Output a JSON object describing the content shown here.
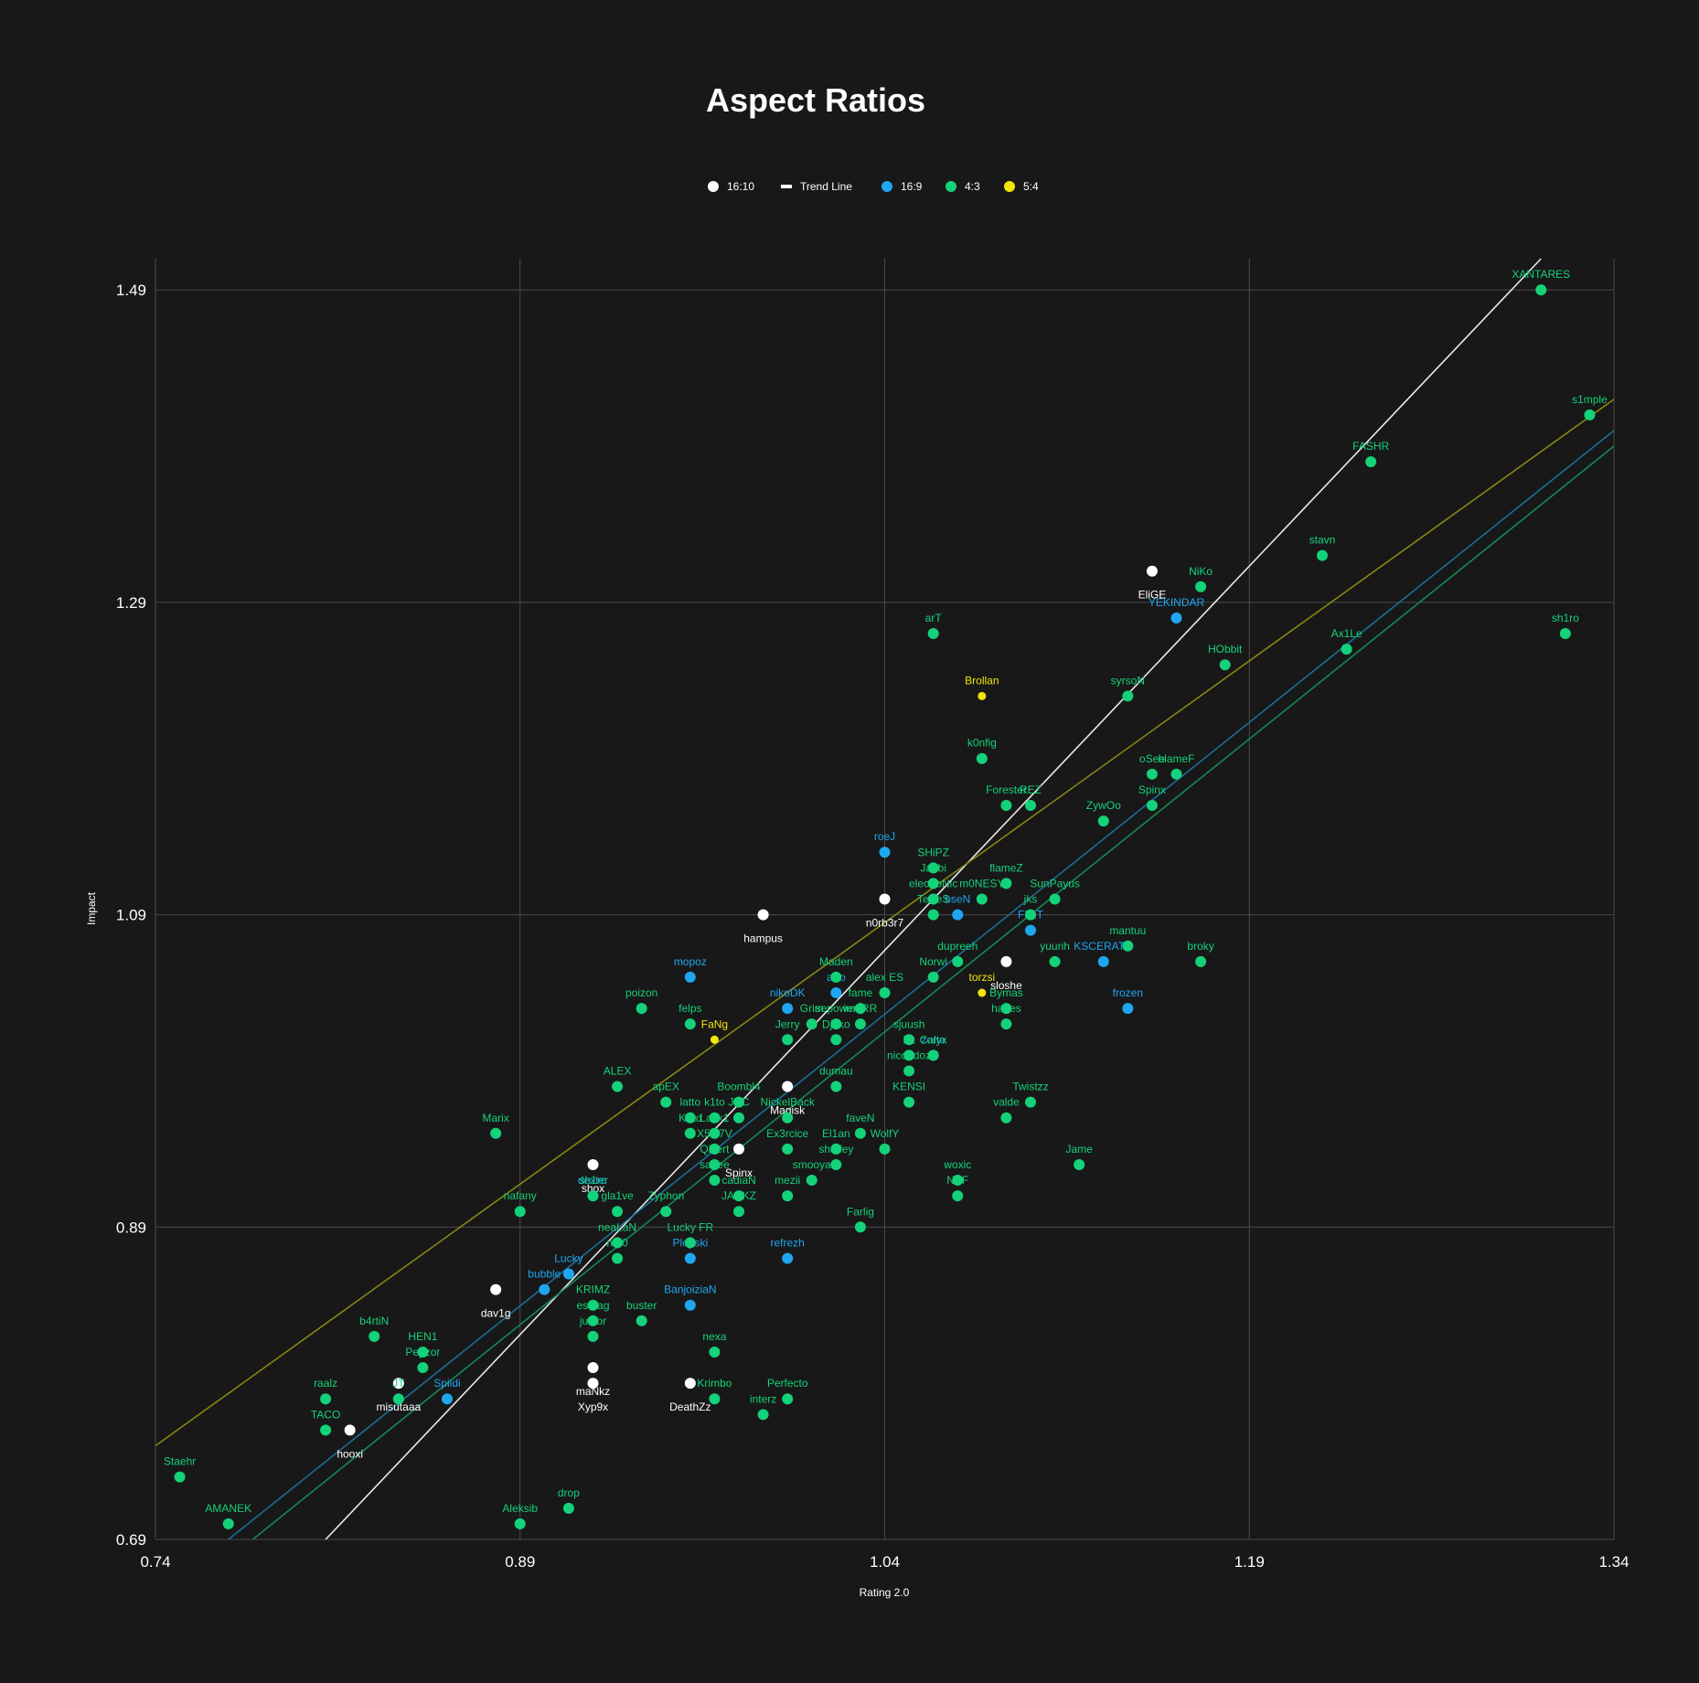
{
  "colors": {
    "background": "#181818",
    "grid": "#4a4a4a",
    "16:10": "#ffffff",
    "16:9": "#1fa6f0",
    "4:3": "#14d27a",
    "5:4": "#f2e40c",
    "trend_16:10": "#e8e8e8",
    "trend_16:9": "#1b6d99",
    "trend_4:3": "#138a58",
    "trend_5:4": "#8a8512"
  },
  "legend": [
    {
      "label": "16:10",
      "key": "16:10",
      "shape": "dot"
    },
    {
      "label": "Trend Line",
      "key": "trend",
      "shape": "dash"
    },
    {
      "label": "16:9",
      "key": "16:9",
      "shape": "dot"
    },
    {
      "label": "4:3",
      "key": "4:3",
      "shape": "dot"
    },
    {
      "label": "5:4",
      "key": "5:4",
      "shape": "dot"
    }
  ],
  "chart_data": {
    "type": "scatter",
    "title": "Aspect Ratios",
    "xlabel": "Rating 2.0",
    "ylabel": "Impact",
    "xlim": [
      0.74,
      1.34
    ],
    "ylim": [
      0.69,
      1.51
    ],
    "x_ticks": [
      "0.74",
      "0.89",
      "1.04",
      "1.19",
      "1.34"
    ],
    "y_ticks": [
      "0.69",
      "0.89",
      "1.09",
      "1.29",
      "1.49"
    ],
    "grid": true,
    "legend_position": "top-center",
    "trend_lines": [
      {
        "series": "16:10",
        "x": [
          0.81,
          1.31
        ],
        "y": [
          0.69,
          1.51
        ]
      },
      {
        "series": "16:9",
        "x": [
          0.77,
          1.34
        ],
        "y": [
          0.69,
          1.4
        ]
      },
      {
        "series": "4:3",
        "x": [
          0.78,
          1.34
        ],
        "y": [
          0.69,
          1.39
        ]
      },
      {
        "series": "5:4",
        "x": [
          0.74,
          1.34
        ],
        "y": [
          0.75,
          1.42
        ]
      }
    ],
    "series": [
      {
        "name": "16:10",
        "points": [
          {
            "label": "EliGE",
            "x": 1.15,
            "y": 1.31
          },
          {
            "label": "hampus",
            "x": 0.99,
            "y": 1.09
          },
          {
            "label": "n0rb3r7",
            "x": 1.04,
            "y": 1.1
          },
          {
            "label": "sloshe",
            "x": 1.09,
            "y": 1.06
          },
          {
            "label": "Magisk",
            "x": 1.0,
            "y": 0.98
          },
          {
            "label": "Spinx",
            "x": 0.98,
            "y": 0.94
          },
          {
            "label": "shox",
            "x": 0.92,
            "y": 0.93
          },
          {
            "label": "dav1g",
            "x": 0.88,
            "y": 0.85
          },
          {
            "label": "misutaaa",
            "x": 0.84,
            "y": 0.79
          },
          {
            "label": "hooxi",
            "x": 0.82,
            "y": 0.76
          },
          {
            "label": "maNkz",
            "x": 0.92,
            "y": 0.8
          },
          {
            "label": "Xyp9x",
            "x": 0.92,
            "y": 0.79
          },
          {
            "label": "DeathZz",
            "x": 0.96,
            "y": 0.79
          }
        ]
      },
      {
        "name": "16:9",
        "points": [
          {
            "label": "YEKINDAR",
            "x": 1.16,
            "y": 1.28
          },
          {
            "label": "roeJ",
            "x": 1.04,
            "y": 1.13
          },
          {
            "label": "bseN",
            "x": 1.07,
            "y": 1.09
          },
          {
            "label": "FL1T",
            "x": 1.1,
            "y": 1.08
          },
          {
            "label": "KSCERATO",
            "x": 1.13,
            "y": 1.06
          },
          {
            "label": "frozen",
            "x": 1.14,
            "y": 1.03
          },
          {
            "label": "mopoz",
            "x": 0.96,
            "y": 1.05
          },
          {
            "label": "afro",
            "x": 1.02,
            "y": 1.04
          },
          {
            "label": "nikoDK",
            "x": 1.0,
            "y": 1.03
          },
          {
            "label": "zorte",
            "x": 1.06,
            "y": 1.0
          },
          {
            "label": "dexter",
            "x": 0.92,
            "y": 0.91
          },
          {
            "label": "Lucky",
            "x": 0.91,
            "y": 0.86
          },
          {
            "label": "bubble",
            "x": 0.9,
            "y": 0.85
          },
          {
            "label": "Plopski",
            "x": 0.96,
            "y": 0.87
          },
          {
            "label": "refrezh",
            "x": 1.0,
            "y": 0.87
          },
          {
            "label": "BanjoiziaN",
            "x": 0.96,
            "y": 0.84
          },
          {
            "label": "Spiidi",
            "x": 0.86,
            "y": 0.78
          }
        ]
      },
      {
        "name": "4:3",
        "points": [
          {
            "label": "XANTARES",
            "x": 1.31,
            "y": 1.49
          },
          {
            "label": "s1mple",
            "x": 1.33,
            "y": 1.41
          },
          {
            "label": "FASHR",
            "x": 1.24,
            "y": 1.38
          },
          {
            "label": "stavn",
            "x": 1.22,
            "y": 1.32
          },
          {
            "label": "NiKo",
            "x": 1.17,
            "y": 1.3
          },
          {
            "label": "sh1ro",
            "x": 1.32,
            "y": 1.27
          },
          {
            "label": "Ax1Le",
            "x": 1.23,
            "y": 1.26
          },
          {
            "label": "HObbit",
            "x": 1.18,
            "y": 1.25
          },
          {
            "label": "arT",
            "x": 1.06,
            "y": 1.27
          },
          {
            "label": "syrsoN",
            "x": 1.14,
            "y": 1.23
          },
          {
            "label": "k0nfig",
            "x": 1.08,
            "y": 1.19
          },
          {
            "label": "oSee",
            "x": 1.15,
            "y": 1.18
          },
          {
            "label": "blameF",
            "x": 1.16,
            "y": 1.18
          },
          {
            "label": "Forester",
            "x": 1.09,
            "y": 1.16
          },
          {
            "label": "REZ",
            "x": 1.1,
            "y": 1.16
          },
          {
            "label": "Spinx",
            "x": 1.15,
            "y": 1.16
          },
          {
            "label": "ZywOo",
            "x": 1.13,
            "y": 1.15
          },
          {
            "label": "SHiPZ",
            "x": 1.06,
            "y": 1.12
          },
          {
            "label": "Jabbi",
            "x": 1.06,
            "y": 1.11
          },
          {
            "label": "flameZ",
            "x": 1.09,
            "y": 1.11
          },
          {
            "label": "electroNic",
            "x": 1.06,
            "y": 1.1
          },
          {
            "label": "m0NESY",
            "x": 1.08,
            "y": 1.1
          },
          {
            "label": "SunPayus",
            "x": 1.11,
            "y": 1.1
          },
          {
            "label": "TeSeS",
            "x": 1.06,
            "y": 1.09
          },
          {
            "label": "jks",
            "x": 1.1,
            "y": 1.09
          },
          {
            "label": "mantuu",
            "x": 1.14,
            "y": 1.07
          },
          {
            "label": "dupreeh",
            "x": 1.07,
            "y": 1.06
          },
          {
            "label": "yuurih",
            "x": 1.11,
            "y": 1.06
          },
          {
            "label": "broky",
            "x": 1.17,
            "y": 1.06
          },
          {
            "label": "Norwi",
            "x": 1.06,
            "y": 1.05
          },
          {
            "label": "Maden",
            "x": 1.02,
            "y": 1.05
          },
          {
            "label": "alex ES",
            "x": 1.04,
            "y": 1.04
          },
          {
            "label": "fame",
            "x": 1.03,
            "y": 1.03
          },
          {
            "label": "Bymas",
            "x": 1.09,
            "y": 1.03
          },
          {
            "label": "poizon",
            "x": 0.94,
            "y": 1.03
          },
          {
            "label": "felps",
            "x": 0.96,
            "y": 1.02
          },
          {
            "label": "Grim",
            "x": 1.01,
            "y": 1.02
          },
          {
            "label": "sepower",
            "x": 1.02,
            "y": 1.02
          },
          {
            "label": "imoRR",
            "x": 1.03,
            "y": 1.02
          },
          {
            "label": "sjuush",
            "x": 1.05,
            "y": 1.01
          },
          {
            "label": "hades",
            "x": 1.09,
            "y": 1.02
          },
          {
            "label": "Jerry",
            "x": 1.0,
            "y": 1.01
          },
          {
            "label": "Djoko",
            "x": 1.02,
            "y": 1.01
          },
          {
            "label": "bit",
            "x": 1.05,
            "y": 1.0
          },
          {
            "label": "Calyx",
            "x": 1.06,
            "y": 1.0
          },
          {
            "label": "nicoodoz",
            "x": 1.05,
            "y": 0.99
          },
          {
            "label": "ALEX",
            "x": 0.93,
            "y": 0.98
          },
          {
            "label": "dumau",
            "x": 1.02,
            "y": 0.98
          },
          {
            "label": "apEX",
            "x": 0.95,
            "y": 0.97
          },
          {
            "label": "Boombl4",
            "x": 0.98,
            "y": 0.97
          },
          {
            "label": "KENSI",
            "x": 1.05,
            "y": 0.97
          },
          {
            "label": "Twistzz",
            "x": 1.1,
            "y": 0.97
          },
          {
            "label": "latto",
            "x": 0.96,
            "y": 0.96
          },
          {
            "label": "k1to",
            "x": 0.97,
            "y": 0.96
          },
          {
            "label": "JDC",
            "x": 0.98,
            "y": 0.96
          },
          {
            "label": "NickelBack",
            "x": 1.0,
            "y": 0.96
          },
          {
            "label": "valde",
            "x": 1.09,
            "y": 0.96
          },
          {
            "label": "Marix",
            "x": 0.88,
            "y": 0.95
          },
          {
            "label": "Krad",
            "x": 0.96,
            "y": 0.95
          },
          {
            "label": "Lack1",
            "x": 0.97,
            "y": 0.95
          },
          {
            "label": "faveN",
            "x": 1.03,
            "y": 0.95
          },
          {
            "label": "Ex3rcice",
            "x": 1.0,
            "y": 0.94
          },
          {
            "label": "El1an",
            "x": 1.02,
            "y": 0.94
          },
          {
            "label": "WolfY",
            "x": 1.04,
            "y": 0.94
          },
          {
            "label": "X5G7V",
            "x": 0.97,
            "y": 0.94
          },
          {
            "label": "shalfey",
            "x": 1.02,
            "y": 0.93
          },
          {
            "label": "Jame",
            "x": 1.12,
            "y": 0.93
          },
          {
            "label": "Qikert",
            "x": 0.97,
            "y": 0.93
          },
          {
            "label": "saffee",
            "x": 0.97,
            "y": 0.92
          },
          {
            "label": "smooya",
            "x": 1.01,
            "y": 0.92
          },
          {
            "label": "mezii",
            "x": 1.0,
            "y": 0.91
          },
          {
            "label": "woxic",
            "x": 1.07,
            "y": 0.92
          },
          {
            "label": "NAF",
            "x": 1.07,
            "y": 0.91
          },
          {
            "label": "nafany",
            "x": 0.89,
            "y": 0.9
          },
          {
            "label": "sh1ro",
            "x": 0.92,
            "y": 0.91
          },
          {
            "label": "gla1ve",
            "x": 0.93,
            "y": 0.9
          },
          {
            "label": "Zyphon",
            "x": 0.95,
            "y": 0.9
          },
          {
            "label": "cadiaN",
            "x": 0.98,
            "y": 0.91
          },
          {
            "label": "JACKZ",
            "x": 0.98,
            "y": 0.9
          },
          {
            "label": "Farlig",
            "x": 1.03,
            "y": 0.89
          },
          {
            "label": "Lucky FR",
            "x": 0.96,
            "y": 0.88
          },
          {
            "label": "neaLaN",
            "x": 0.93,
            "y": 0.88
          },
          {
            "label": "nitr0",
            "x": 0.93,
            "y": 0.87
          },
          {
            "label": "KRIMZ",
            "x": 0.92,
            "y": 0.84
          },
          {
            "label": "es3tag",
            "x": 0.92,
            "y": 0.83
          },
          {
            "label": "junior",
            "x": 0.92,
            "y": 0.82
          },
          {
            "label": "buster",
            "x": 0.94,
            "y": 0.83
          },
          {
            "label": "nexa",
            "x": 0.97,
            "y": 0.81
          },
          {
            "label": "Krimbo",
            "x": 0.97,
            "y": 0.78
          },
          {
            "label": "Perfecto",
            "x": 1.0,
            "y": 0.78
          },
          {
            "label": "interz",
            "x": 0.99,
            "y": 0.77
          },
          {
            "label": "b4rtiN",
            "x": 0.83,
            "y": 0.82
          },
          {
            "label": "HEN1",
            "x": 0.85,
            "y": 0.81
          },
          {
            "label": "Pepzor",
            "x": 0.85,
            "y": 0.8
          },
          {
            "label": "raalz",
            "x": 0.81,
            "y": 0.78
          },
          {
            "label": "JT",
            "x": 0.84,
            "y": 0.78
          },
          {
            "label": "TACO",
            "x": 0.81,
            "y": 0.76
          },
          {
            "label": "Staehr",
            "x": 0.75,
            "y": 0.73
          },
          {
            "label": "AMANEK",
            "x": 0.77,
            "y": 0.7
          },
          {
            "label": "Aleksib",
            "x": 0.89,
            "y": 0.7
          },
          {
            "label": "drop",
            "x": 0.91,
            "y": 0.71
          }
        ]
      },
      {
        "name": "5:4",
        "points": [
          {
            "label": "Brollan",
            "x": 1.08,
            "y": 1.23
          },
          {
            "label": "torzsi",
            "x": 1.08,
            "y": 1.04
          },
          {
            "label": "FaNg",
            "x": 0.97,
            "y": 1.01
          }
        ]
      }
    ]
  }
}
